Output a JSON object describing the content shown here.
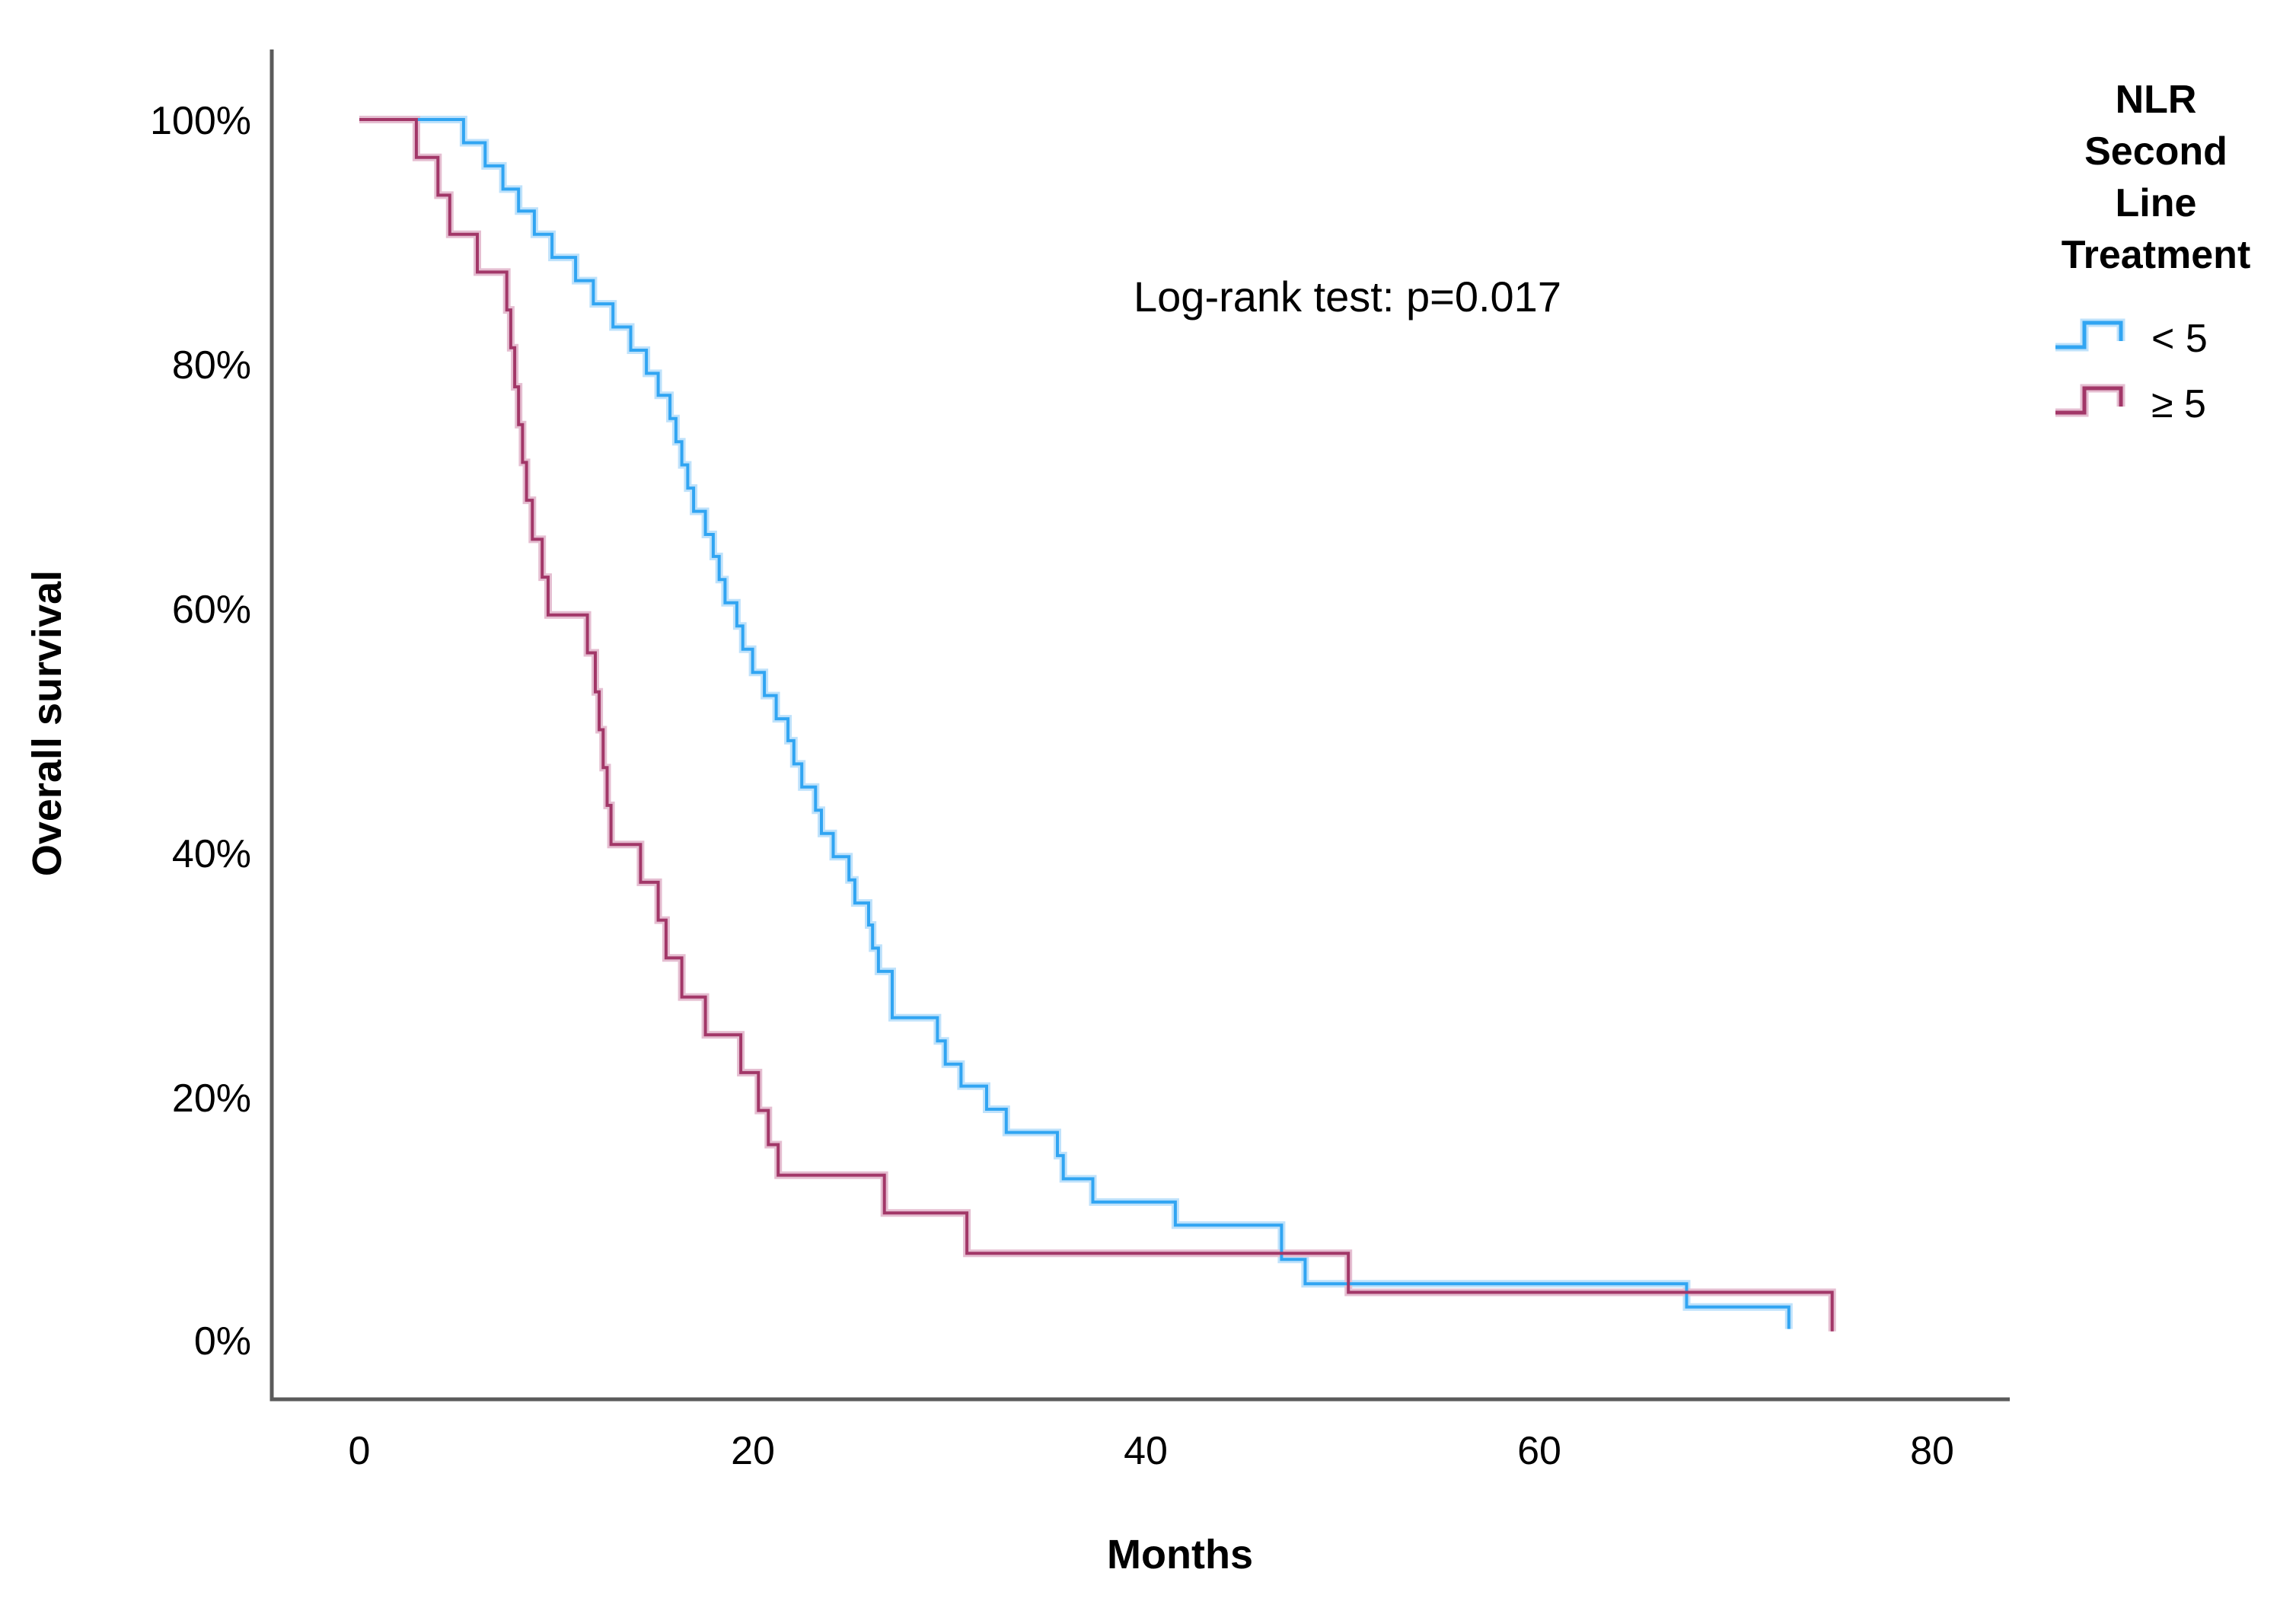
{
  "y_axis": {
    "title": "Overall survival",
    "tick_labels": [
      "100%",
      "80%",
      "60%",
      "40%",
      "20%",
      "0%"
    ],
    "tick_values": [
      100,
      80,
      60,
      40,
      20,
      0
    ]
  },
  "x_axis": {
    "title": "Months",
    "tick_labels": [
      "0",
      "20",
      "40",
      "60",
      "80"
    ],
    "tick_values": [
      0,
      20,
      40,
      60,
      80
    ]
  },
  "annotation": {
    "text": "Log-rank test: p=0.017"
  },
  "legend": {
    "title_lines": [
      "NLR",
      "Second",
      "Line",
      "Treatment"
    ],
    "entries": [
      {
        "label": "< 5",
        "color": "#31a5f2",
        "halo": "#bfe2fb"
      },
      {
        "label": "≥ 5",
        "color": "#a23768",
        "halo": "#e5bed1"
      }
    ]
  },
  "colors": {
    "axis": "#5b5b5b",
    "blue_curve": "#31a5f2",
    "blue_halo": "#bfe2fb",
    "red_curve": "#a23768",
    "red_halo": "#e5bed1"
  },
  "chart_data": {
    "type": "line",
    "subtype": "kaplan-meier-step",
    "title": "",
    "xlabel": "Months",
    "ylabel": "Overall survival",
    "xlim": [
      -4.5,
      84
    ],
    "ylim": [
      0,
      100
    ],
    "grid": false,
    "legend_position": "right",
    "legend_title": "NLR Second Line Treatment",
    "annotation": "Log-rank test: p=0.017",
    "x_unit": "months",
    "y_unit": "percent survival",
    "series": [
      {
        "name": "< 5",
        "color": "#31a5f2",
        "start": [
          0,
          100
        ],
        "steps": [
          [
            5.3,
            98.1
          ],
          [
            6.4,
            96.2
          ],
          [
            7.3,
            94.3
          ],
          [
            8.1,
            92.5
          ],
          [
            8.9,
            90.6
          ],
          [
            9.8,
            88.7
          ],
          [
            11.0,
            86.8
          ],
          [
            11.9,
            84.9
          ],
          [
            12.9,
            83.0
          ],
          [
            13.8,
            81.1
          ],
          [
            14.6,
            79.2
          ],
          [
            15.2,
            77.4
          ],
          [
            15.8,
            75.5
          ],
          [
            16.1,
            73.6
          ],
          [
            16.4,
            71.7
          ],
          [
            16.7,
            69.8
          ],
          [
            17.0,
            67.9
          ],
          [
            17.6,
            66.0
          ],
          [
            18.0,
            64.2
          ],
          [
            18.3,
            62.3
          ],
          [
            18.6,
            60.4
          ],
          [
            19.2,
            58.5
          ],
          [
            19.5,
            56.6
          ],
          [
            20.0,
            54.7
          ],
          [
            20.6,
            52.8
          ],
          [
            21.2,
            50.9
          ],
          [
            21.8,
            49.1
          ],
          [
            22.1,
            47.2
          ],
          [
            22.5,
            45.3
          ],
          [
            23.2,
            43.4
          ],
          [
            23.5,
            41.5
          ],
          [
            24.1,
            39.6
          ],
          [
            24.9,
            37.7
          ],
          [
            25.2,
            35.8
          ],
          [
            25.9,
            34.0
          ],
          [
            26.1,
            32.1
          ],
          [
            26.4,
            30.2
          ],
          [
            27.1,
            26.4
          ],
          [
            29.4,
            24.5
          ],
          [
            29.8,
            22.6
          ],
          [
            30.6,
            20.8
          ],
          [
            31.9,
            18.9
          ],
          [
            32.9,
            17.0
          ],
          [
            35.5,
            15.1
          ],
          [
            35.8,
            13.2
          ],
          [
            37.3,
            11.3
          ],
          [
            41.5,
            9.4
          ],
          [
            46.9,
            6.6
          ],
          [
            48.1,
            4.6
          ],
          [
            67.5,
            2.7
          ],
          [
            72.7,
            0.9
          ]
        ]
      },
      {
        "name": "≥ 5",
        "color": "#a23768",
        "start": [
          0,
          100
        ],
        "steps": [
          [
            2.9,
            96.9
          ],
          [
            4.0,
            93.8
          ],
          [
            4.6,
            90.6
          ],
          [
            6.0,
            87.5
          ],
          [
            7.5,
            84.4
          ],
          [
            7.7,
            81.3
          ],
          [
            7.9,
            78.1
          ],
          [
            8.1,
            75.0
          ],
          [
            8.3,
            71.9
          ],
          [
            8.5,
            68.8
          ],
          [
            8.8,
            65.6
          ],
          [
            9.3,
            62.5
          ],
          [
            9.6,
            59.4
          ],
          [
            11.6,
            56.3
          ],
          [
            12.0,
            53.1
          ],
          [
            12.2,
            50.0
          ],
          [
            12.4,
            46.9
          ],
          [
            12.6,
            43.8
          ],
          [
            12.8,
            40.6
          ],
          [
            14.3,
            37.5
          ],
          [
            15.2,
            34.4
          ],
          [
            15.6,
            31.3
          ],
          [
            16.4,
            28.1
          ],
          [
            17.6,
            25.0
          ],
          [
            19.4,
            21.9
          ],
          [
            20.3,
            18.8
          ],
          [
            20.8,
            16.0
          ],
          [
            21.3,
            13.5
          ],
          [
            26.7,
            10.4
          ],
          [
            30.9,
            7.1
          ],
          [
            50.3,
            3.9
          ],
          [
            74.9,
            0.7
          ]
        ]
      }
    ]
  }
}
